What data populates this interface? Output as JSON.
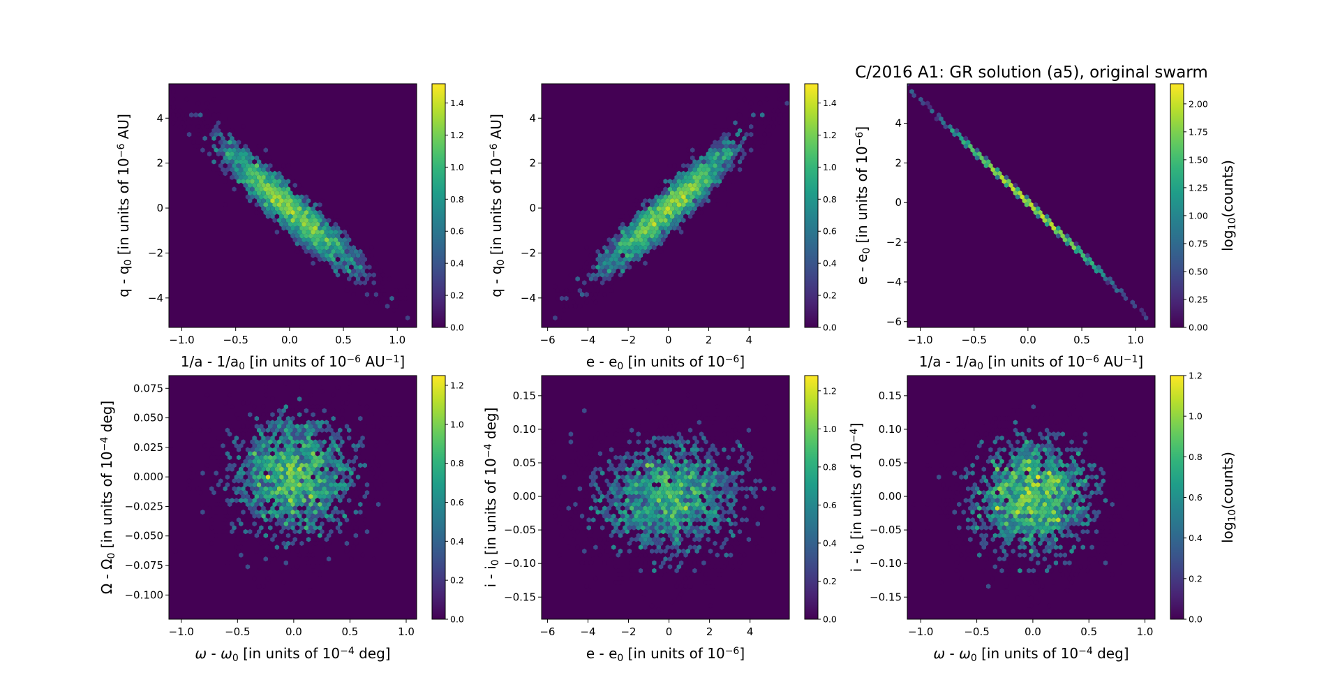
{
  "title": "C/2016 A1: GR solution (a5), original swarm",
  "chart_data": [
    {
      "type": "hexbin",
      "xlabel": [
        {
          "t": "1/a - 1/a"
        },
        {
          "t": "0",
          "s": "sub"
        },
        {
          "t": " [in units of 10"
        },
        {
          "t": "−6",
          "s": "sup"
        },
        {
          "t": " AU"
        },
        {
          "t": "−1",
          "s": "sup"
        },
        {
          "t": "]"
        }
      ],
      "ylabel": [
        {
          "t": "q - q"
        },
        {
          "t": "0",
          "s": "sub"
        },
        {
          "t": " [in units of 10"
        },
        {
          "t": "−6",
          "s": "sup"
        },
        {
          "t": " AU]"
        }
      ],
      "xlim": [
        -1.12,
        1.18
      ],
      "ylim": [
        -5.31,
        5.53
      ],
      "xticks": [
        [
          -1.0,
          "−1.0"
        ],
        [
          -0.5,
          "−0.5"
        ],
        [
          0,
          "0.0"
        ],
        [
          0.5,
          "0.5"
        ],
        [
          1.0,
          "1.0"
        ]
      ],
      "yticks": [
        [
          -4,
          "−4"
        ],
        [
          -2,
          "−2"
        ],
        [
          0,
          "0"
        ],
        [
          2,
          "2"
        ],
        [
          4,
          "4"
        ]
      ],
      "colorbar": {
        "label": [],
        "range": [
          0,
          1.52
        ],
        "ticks": [
          [
            0,
            "0.0"
          ],
          [
            0.2,
            "0.2"
          ],
          [
            0.4,
            "0.4"
          ],
          [
            0.6,
            "0.6"
          ],
          [
            0.8,
            "0.8"
          ],
          [
            1.0,
            "1.0"
          ],
          [
            1.2,
            "1.2"
          ],
          [
            1.4,
            "1.4"
          ]
        ]
      }
    },
    {
      "type": "hexbin",
      "xlabel": [
        {
          "t": "e - e"
        },
        {
          "t": "0",
          "s": "sub"
        },
        {
          "t": " [in units of 10"
        },
        {
          "t": "−6",
          "s": "sup"
        },
        {
          "t": "]"
        }
      ],
      "ylabel": [
        {
          "t": "q - q"
        },
        {
          "t": "0",
          "s": "sub"
        },
        {
          "t": " [in units of 10"
        },
        {
          "t": "−6",
          "s": "sup"
        },
        {
          "t": " AU]"
        }
      ],
      "xlim": [
        -6.3,
        6.0
      ],
      "ylim": [
        -5.31,
        5.53
      ],
      "xticks": [
        [
          -6,
          "−6"
        ],
        [
          -4,
          "−4"
        ],
        [
          -2,
          "−2"
        ],
        [
          0,
          "0"
        ],
        [
          2,
          "2"
        ],
        [
          4,
          "4"
        ]
      ],
      "yticks": [
        [
          -4,
          "−4"
        ],
        [
          -2,
          "−2"
        ],
        [
          0,
          "0"
        ],
        [
          2,
          "2"
        ],
        [
          4,
          "4"
        ]
      ],
      "colorbar": {
        "label": [],
        "range": [
          0,
          1.52
        ],
        "ticks": [
          [
            0,
            "0.0"
          ],
          [
            0.2,
            "0.2"
          ],
          [
            0.4,
            "0.4"
          ],
          [
            0.6,
            "0.6"
          ],
          [
            0.8,
            "0.8"
          ],
          [
            1.0,
            "1.0"
          ],
          [
            1.2,
            "1.2"
          ],
          [
            1.4,
            "1.4"
          ]
        ]
      }
    },
    {
      "type": "hexbin",
      "xlabel": [
        {
          "t": "1/a - 1/a"
        },
        {
          "t": "0",
          "s": "sub"
        },
        {
          "t": " [in units of 10"
        },
        {
          "t": "−6",
          "s": "sup"
        },
        {
          "t": " AU"
        },
        {
          "t": "−1",
          "s": "sup"
        },
        {
          "t": "]"
        }
      ],
      "ylabel": [
        {
          "t": "e - e"
        },
        {
          "t": "0",
          "s": "sub"
        },
        {
          "t": " [in units of 10"
        },
        {
          "t": "−6",
          "s": "sup"
        },
        {
          "t": "]"
        }
      ],
      "xlim": [
        -1.12,
        1.18
      ],
      "ylim": [
        -6.29,
        5.99
      ],
      "xticks": [
        [
          -1.0,
          "−1.0"
        ],
        [
          -0.5,
          "−0.5"
        ],
        [
          0,
          "0.0"
        ],
        [
          0.5,
          "0.5"
        ],
        [
          1.0,
          "1.0"
        ]
      ],
      "yticks": [
        [
          -6,
          "−6"
        ],
        [
          -4,
          "−4"
        ],
        [
          -2,
          "−2"
        ],
        [
          0,
          "0"
        ],
        [
          2,
          "2"
        ],
        [
          4,
          "4"
        ]
      ],
      "colorbar": {
        "label": [
          {
            "t": "log"
          },
          {
            "t": "10",
            "s": "sub"
          },
          {
            "t": "(counts)"
          }
        ],
        "range": [
          0,
          2.18
        ],
        "ticks": [
          [
            0,
            "0.00"
          ],
          [
            0.25,
            "0.25"
          ],
          [
            0.5,
            "0.50"
          ],
          [
            0.75,
            "0.75"
          ],
          [
            1.0,
            "1.00"
          ],
          [
            1.25,
            "1.25"
          ],
          [
            1.5,
            "1.50"
          ],
          [
            1.75,
            "1.75"
          ],
          [
            2.0,
            "2.00"
          ]
        ]
      }
    },
    {
      "type": "hexbin",
      "xlabel": [
        {
          "t": "ω",
          "s": "it"
        },
        {
          "t": " - "
        },
        {
          "t": "ω",
          "s": "it"
        },
        {
          "t": "0",
          "s": "sub"
        },
        {
          "t": " [in units of 10"
        },
        {
          "t": "−4",
          "s": "sup"
        },
        {
          "t": " deg]"
        }
      ],
      "ylabel": [
        {
          "t": "Ω - Ω"
        },
        {
          "t": "0",
          "s": "sub"
        },
        {
          "t": " [in units of 10"
        },
        {
          "t": "−4",
          "s": "sup"
        },
        {
          "t": " deg]"
        }
      ],
      "xlim": [
        -1.11,
        1.093
      ],
      "ylim": [
        -0.1205,
        0.0858
      ],
      "xticks": [
        [
          -1.0,
          "−1.0"
        ],
        [
          -0.5,
          "−0.5"
        ],
        [
          0,
          "0.0"
        ],
        [
          0.5,
          "0.5"
        ],
        [
          1.0,
          "1.0"
        ]
      ],
      "yticks": [
        [
          -0.1,
          "−0.100"
        ],
        [
          -0.075,
          "−0.075"
        ],
        [
          -0.05,
          "−0.050"
        ],
        [
          -0.025,
          "−0.025"
        ],
        [
          0,
          "0.000"
        ],
        [
          0.025,
          "0.025"
        ],
        [
          0.05,
          "0.050"
        ],
        [
          0.075,
          "0.075"
        ]
      ],
      "colorbar": {
        "label": [],
        "range": [
          0,
          1.25
        ],
        "ticks": [
          [
            0,
            "0.0"
          ],
          [
            0.2,
            "0.2"
          ],
          [
            0.4,
            "0.4"
          ],
          [
            0.6,
            "0.6"
          ],
          [
            0.8,
            "0.8"
          ],
          [
            1.0,
            "1.0"
          ],
          [
            1.2,
            "1.2"
          ]
        ]
      }
    },
    {
      "type": "hexbin",
      "xlabel": [
        {
          "t": "e - e"
        },
        {
          "t": "0",
          "s": "sub"
        },
        {
          "t": " [in units of 10"
        },
        {
          "t": "−6",
          "s": "sup"
        },
        {
          "t": "]"
        }
      ],
      "ylabel": [
        {
          "t": "i - i"
        },
        {
          "t": "0",
          "s": "sub"
        },
        {
          "t": " [in units of 10"
        },
        {
          "t": "−4",
          "s": "sup"
        },
        {
          "t": " deg]"
        }
      ],
      "xlim": [
        -6.29,
        5.94
      ],
      "ylim": [
        -0.183,
        0.18
      ],
      "xticks": [
        [
          -6,
          "−6"
        ],
        [
          -4,
          "−4"
        ],
        [
          -2,
          "−2"
        ],
        [
          0,
          "0"
        ],
        [
          2,
          "2"
        ],
        [
          4,
          "4"
        ]
      ],
      "yticks": [
        [
          -0.15,
          "−0.15"
        ],
        [
          -0.1,
          "−0.10"
        ],
        [
          -0.05,
          "−0.05"
        ],
        [
          0,
          "0.00"
        ],
        [
          0.05,
          "0.05"
        ],
        [
          0.1,
          "0.10"
        ],
        [
          0.15,
          "0.15"
        ]
      ],
      "colorbar": {
        "label": [],
        "range": [
          0,
          1.28
        ],
        "ticks": [
          [
            0,
            "0.0"
          ],
          [
            0.2,
            "0.2"
          ],
          [
            0.4,
            "0.4"
          ],
          [
            0.6,
            "0.6"
          ],
          [
            0.8,
            "0.8"
          ],
          [
            1.0,
            "1.0"
          ],
          [
            1.2,
            "1.2"
          ]
        ]
      }
    },
    {
      "type": "hexbin",
      "xlabel": [
        {
          "t": "ω",
          "s": "it"
        },
        {
          "t": " - "
        },
        {
          "t": "ω",
          "s": "it"
        },
        {
          "t": "0",
          "s": "sub"
        },
        {
          "t": " [in units of 10"
        },
        {
          "t": "−4",
          "s": "sup"
        },
        {
          "t": " deg]"
        }
      ],
      "ylabel": [
        {
          "t": "i - i"
        },
        {
          "t": "0",
          "s": "sub"
        },
        {
          "t": " [in units of 10"
        },
        {
          "t": "−4",
          "s": "sup"
        },
        {
          "t": "]"
        }
      ],
      "xlim": [
        -1.12,
        1.09
      ],
      "ylim": [
        -0.183,
        0.18
      ],
      "xticks": [
        [
          -1.0,
          "−1.0"
        ],
        [
          -0.5,
          "−0.5"
        ],
        [
          0,
          "0.0"
        ],
        [
          0.5,
          "0.5"
        ],
        [
          1.0,
          "1.0"
        ]
      ],
      "yticks": [
        [
          -0.15,
          "−0.15"
        ],
        [
          -0.1,
          "−0.10"
        ],
        [
          -0.05,
          "−0.05"
        ],
        [
          0,
          "0.00"
        ],
        [
          0.05,
          "0.05"
        ],
        [
          0.1,
          "0.10"
        ],
        [
          0.15,
          "0.15"
        ]
      ],
      "colorbar": {
        "label": [
          {
            "t": "log"
          },
          {
            "t": "10",
            "s": "sub"
          },
          {
            "t": "(counts)"
          }
        ],
        "range": [
          0,
          1.2
        ],
        "ticks": [
          [
            0,
            "0.0"
          ],
          [
            0.2,
            "0.2"
          ],
          [
            0.4,
            "0.4"
          ],
          [
            0.6,
            "0.6"
          ],
          [
            0.8,
            "0.8"
          ],
          [
            1.0,
            "1.0"
          ],
          [
            1.2,
            "1.2"
          ]
        ]
      }
    }
  ]
}
